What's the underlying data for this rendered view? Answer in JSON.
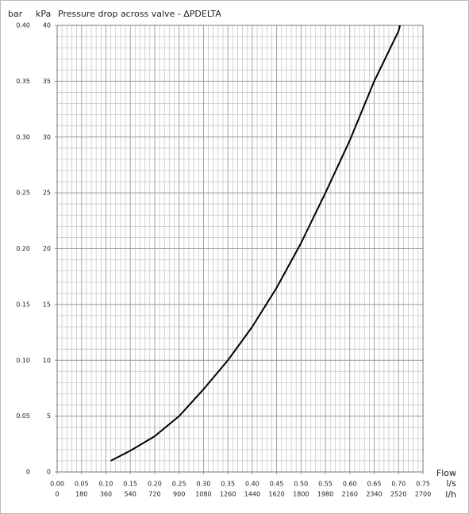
{
  "chart_data": {
    "type": "line",
    "title": "Pressure drop across valve - ΔPDELTA",
    "y_label": "kPa",
    "y2_label": "bar",
    "x_title": "Flow",
    "x_label": "l/s",
    "x2_label": "l/h",
    "x": [
      0.11,
      0.15,
      0.2,
      0.25,
      0.3,
      0.35,
      0.4,
      0.45,
      0.5,
      0.55,
      0.6,
      0.65,
      0.7,
      0.703
    ],
    "values": [
      1,
      1.9,
      3.2,
      5,
      7.4,
      10,
      13,
      16.5,
      20.5,
      25,
      29.7,
      35,
      39.5,
      40
    ],
    "color": "#000000",
    "xlim": [
      0,
      0.75
    ],
    "xticks": [
      {
        "value": 0,
        "label": "0.00"
      },
      0.05,
      {
        "value": 0.1,
        "label": "0.10"
      },
      0.15,
      {
        "value": 0.2,
        "label": "0.20"
      },
      0.25,
      {
        "value": 0.3,
        "label": "0.30"
      },
      0.35,
      {
        "value": 0.4,
        "label": "0.40"
      },
      0.45,
      {
        "value": 0.5,
        "label": "0.50"
      },
      0.55,
      {
        "value": 0.6,
        "label": "0.60"
      },
      0.65,
      {
        "value": 0.7,
        "label": "0.70"
      },
      0.75
    ],
    "x2lim": [
      0,
      2700
    ],
    "x2ticks": [
      0,
      180,
      360,
      540,
      720,
      900,
      1080,
      1260,
      1440,
      1620,
      1800,
      1980,
      2160,
      2340,
      2520,
      2700
    ],
    "ylim": [
      0,
      40
    ],
    "yticks": [
      0,
      5,
      10,
      15,
      20,
      25,
      30,
      35,
      40
    ],
    "y2lim": [
      0,
      0.4
    ],
    "y2ticks": [
      0,
      0.05,
      {
        "value": 0.1,
        "label": "0.10"
      },
      0.15,
      {
        "value": 0.2,
        "label": "0.20"
      },
      0.25,
      {
        "value": 0.3,
        "label": "0.30"
      },
      0.35,
      {
        "value": 0.4,
        "label": "0.40"
      }
    ],
    "grid": true
  }
}
